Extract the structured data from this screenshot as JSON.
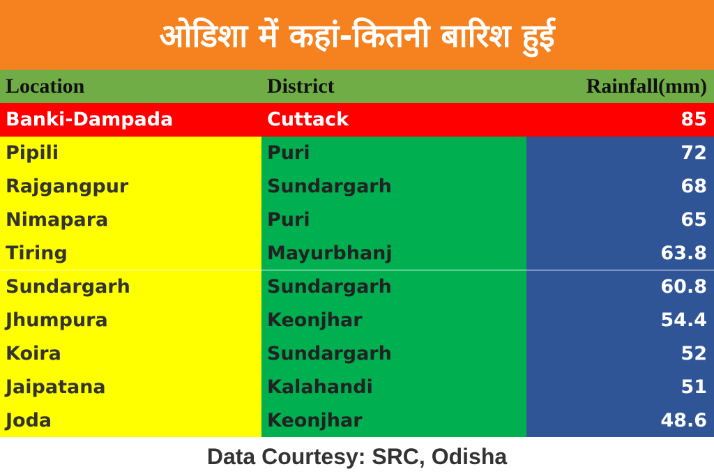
{
  "header": {
    "title": "ओडिशा में कहां-कितनी बारिश हुई"
  },
  "table": {
    "columns": [
      "Location",
      "District",
      "Rainfall(mm)"
    ],
    "rows": [
      [
        "Banki-Dampada",
        "Cuttack",
        85
      ],
      [
        "Pipili",
        "Puri",
        72
      ],
      [
        "Rajgangpur",
        "Sundargarh",
        68
      ],
      [
        "Nimapara",
        "Puri",
        65
      ],
      [
        "Tiring",
        "Mayurbhanj",
        63.8
      ],
      [
        "Sundargarh",
        "Sundargarh",
        60.8
      ],
      [
        "Jhumpura",
        "Keonjhar",
        54.4
      ],
      [
        "Koira",
        "Sundargarh",
        52
      ],
      [
        "Jaipatana",
        "Kalahandi",
        51
      ],
      [
        "Joda",
        "Keonjhar",
        48.6
      ]
    ]
  },
  "footer": {
    "text": "Data Courtesy: SRC, Odisha"
  }
}
